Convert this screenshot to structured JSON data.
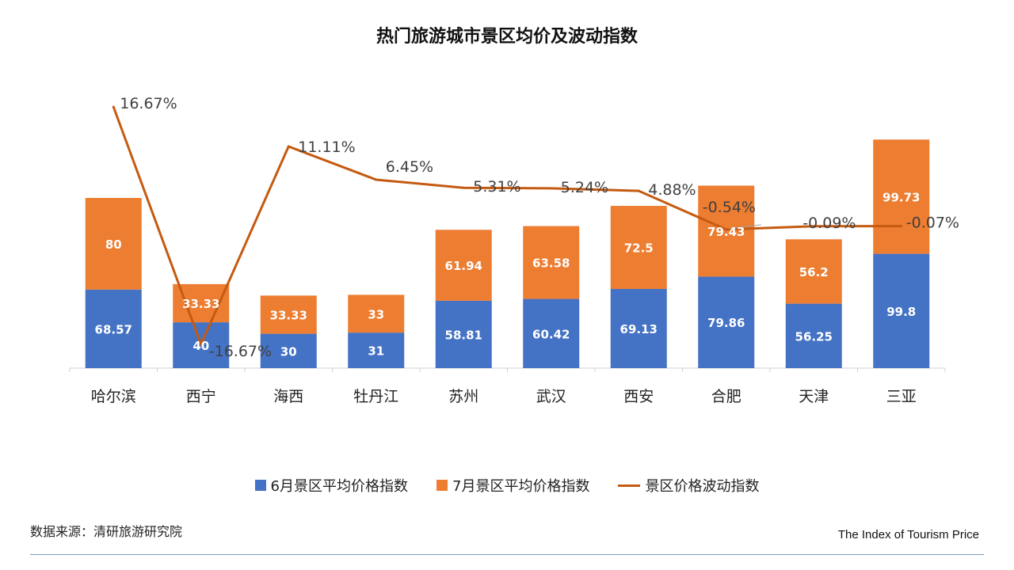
{
  "chart_data": {
    "type": "bar",
    "stacked": true,
    "title": "热门旅游城市景区均价及波动指数",
    "categories": [
      "哈尔滨",
      "西宁",
      "海西",
      "牡丹江",
      "苏州",
      "武汉",
      "西安",
      "合肥",
      "天津",
      "三亚"
    ],
    "series": [
      {
        "name": "6月景区平均价格指数",
        "type": "bar",
        "color": "#4472C4",
        "values": [
          68.57,
          40,
          30,
          31,
          58.81,
          60.42,
          69.13,
          79.86,
          56.25,
          99.8
        ],
        "labels": [
          "68.57",
          "40",
          "30",
          "31",
          "58.81",
          "60.42",
          "69.13",
          "79.86",
          "56.25",
          "99.8"
        ]
      },
      {
        "name": "7月景区平均价格指数",
        "type": "bar",
        "color": "#ED7D31",
        "values": [
          80,
          33.33,
          33.33,
          33,
          61.94,
          63.58,
          72.5,
          79.43,
          56.2,
          99.73
        ],
        "labels": [
          "80",
          "33.33",
          "33.33",
          "33",
          "61.94",
          "63.58",
          "72.5",
          "79.43",
          "56.2",
          "99.73"
        ]
      },
      {
        "name": "景区价格波动指数",
        "type": "line",
        "color": "#C55A11",
        "values": [
          16.67,
          -16.67,
          11.11,
          6.45,
          5.31,
          5.24,
          4.88,
          -0.54,
          -0.09,
          -0.07
        ],
        "labels": [
          "16.67%",
          "-16.67%",
          "11.11%",
          "6.45%",
          "5.31%",
          "5.24%",
          "4.88%",
          "-0.54%",
          "-0.09%",
          "-0.07%"
        ]
      }
    ],
    "legend": "bottom",
    "grid": false
  },
  "footer": {
    "source": "数据来源：清研旅游研究院",
    "brand": "The Index of Tourism Price"
  }
}
